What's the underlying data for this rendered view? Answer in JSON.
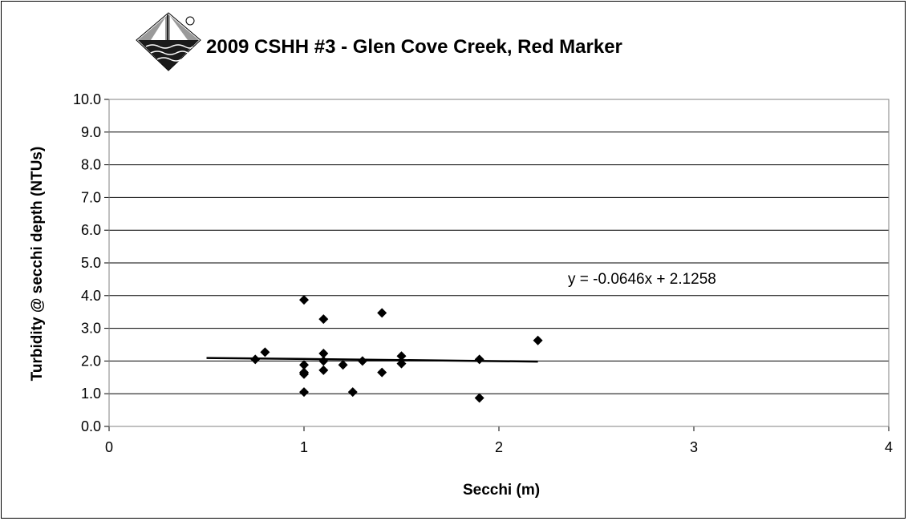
{
  "chart_data": {
    "type": "scatter",
    "title": "2009 CSHH #3 - Glen Cove Creek, Red Marker",
    "xlabel": "Secchi (m)",
    "ylabel": "Turbidity @ secchi depth (NTUs)",
    "xlim": [
      0,
      4
    ],
    "ylim": [
      0,
      10
    ],
    "x_ticks": [
      "0",
      "1",
      "2",
      "3",
      "4"
    ],
    "y_ticks": [
      "0.0",
      "1.0",
      "2.0",
      "3.0",
      "4.0",
      "5.0",
      "6.0",
      "7.0",
      "8.0",
      "9.0",
      "10.0"
    ],
    "grid": "horizontal",
    "marker": "diamond",
    "marker_color": "#000000",
    "points": [
      {
        "x": 0.75,
        "y": 2.05
      },
      {
        "x": 0.8,
        "y": 2.27
      },
      {
        "x": 1.0,
        "y": 3.87
      },
      {
        "x": 1.0,
        "y": 1.88
      },
      {
        "x": 1.0,
        "y": 1.65
      },
      {
        "x": 1.0,
        "y": 1.6
      },
      {
        "x": 1.0,
        "y": 1.05
      },
      {
        "x": 1.1,
        "y": 3.28
      },
      {
        "x": 1.1,
        "y": 2.23
      },
      {
        "x": 1.1,
        "y": 2.0
      },
      {
        "x": 1.1,
        "y": 1.72
      },
      {
        "x": 1.2,
        "y": 1.88
      },
      {
        "x": 1.25,
        "y": 1.05
      },
      {
        "x": 1.3,
        "y": 2.0
      },
      {
        "x": 1.4,
        "y": 3.47
      },
      {
        "x": 1.4,
        "y": 1.65
      },
      {
        "x": 1.5,
        "y": 2.15
      },
      {
        "x": 1.5,
        "y": 1.92
      },
      {
        "x": 1.9,
        "y": 2.05
      },
      {
        "x": 1.9,
        "y": 0.87
      },
      {
        "x": 2.2,
        "y": 2.63
      }
    ],
    "trendline": {
      "slope": -0.0646,
      "intercept": 2.1258,
      "x_range": [
        0.5,
        2.2
      ],
      "label": "y = -0.0646x + 2.1258"
    }
  }
}
